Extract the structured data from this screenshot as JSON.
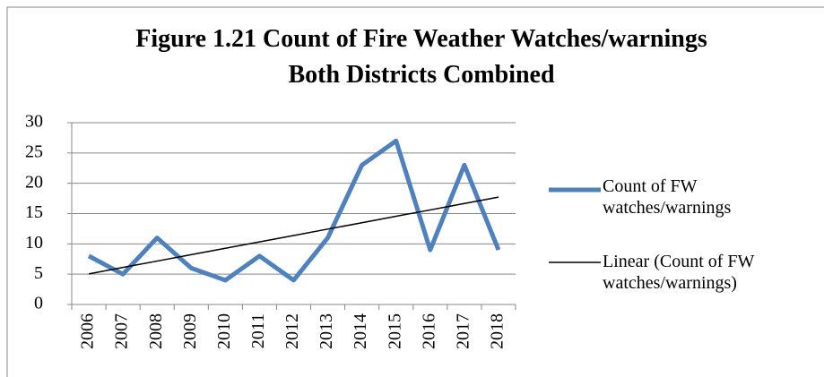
{
  "chart_data": {
    "type": "line",
    "title": "Figure 1.21 Count of Fire Weather Watches/warnings Both Districts Combined",
    "categories": [
      "2006",
      "2007",
      "2008",
      "2009",
      "2010",
      "2011",
      "2012",
      "2013",
      "2014",
      "2015",
      "2016",
      "2017",
      "2018"
    ],
    "series": [
      {
        "name": "Count of FW watches/warnings",
        "color": "#4f81bd",
        "values": [
          8,
          5,
          11,
          6,
          4,
          8,
          4,
          11,
          23,
          27,
          9,
          23,
          9
        ]
      },
      {
        "name": "Linear (Count of FW watches/warnings)",
        "color": "#000000",
        "values": [
          5.05,
          6.11,
          7.16,
          8.22,
          9.27,
          10.33,
          11.38,
          12.44,
          13.49,
          14.55,
          15.6,
          16.66,
          17.71
        ]
      }
    ],
    "ylim": [
      0,
      30
    ],
    "yticks": [
      0,
      5,
      10,
      15,
      20,
      25,
      30
    ],
    "grid": true,
    "legend": "right"
  }
}
